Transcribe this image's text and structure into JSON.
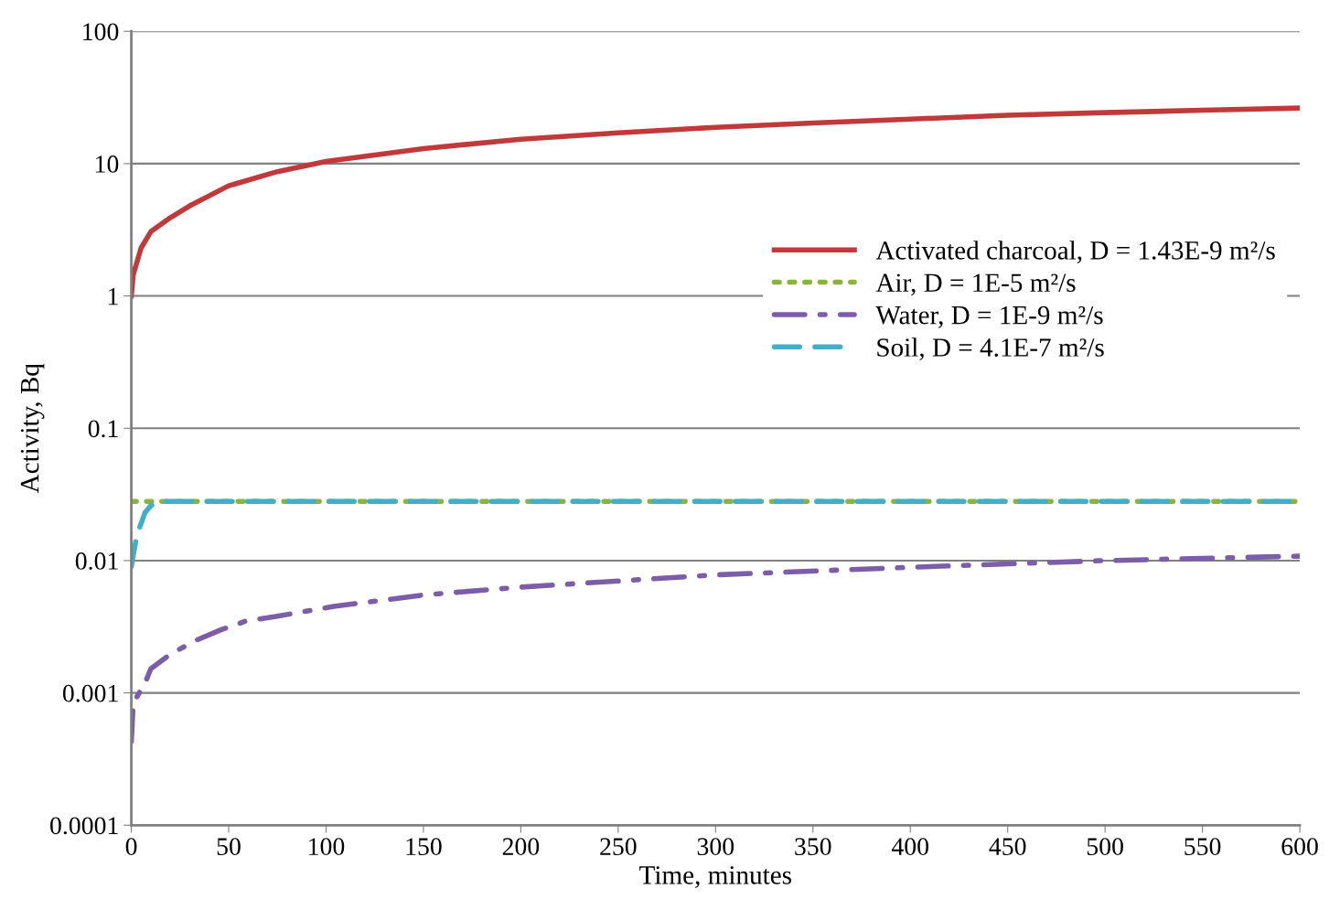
{
  "chart_data": {
    "type": "line",
    "xlabel": "Time, minutes",
    "ylabel": "Activity, Bq",
    "log": "y",
    "grid": "y",
    "legend": "center right",
    "xlim": [
      0,
      600
    ],
    "xticks": [
      0,
      50,
      100,
      150,
      200,
      250,
      300,
      350,
      400,
      450,
      500,
      550,
      600
    ],
    "ylim": [
      0.0001,
      100
    ],
    "yticks": [
      0.0001,
      0.001,
      0.01,
      0.1,
      1,
      10,
      100
    ],
    "series": [
      {
        "name": "Activated charcoal, D = 1.43E-9 m²/s",
        "color": "#c0393b",
        "line_style": "solid",
        "x": [
          0,
          1,
          5,
          10,
          20,
          30,
          50,
          75,
          100,
          150,
          200,
          250,
          300,
          350,
          400,
          450,
          500,
          550,
          600
        ],
        "values": [
          1.0,
          1.45,
          2.3,
          3.06,
          3.9,
          4.8,
          6.8,
          8.7,
          10.4,
          13,
          15.3,
          17.1,
          18.8,
          20.3,
          21.7,
          23.2,
          24.3,
          25.3,
          26.3
        ]
      },
      {
        "name": "Air, D = 1E-5 m²/s",
        "color": "#8db33f",
        "line_style": "dotted",
        "x": [
          0,
          600
        ],
        "values": [
          0.028,
          0.028
        ]
      },
      {
        "name": "Water, D = 1E-9 m²/s",
        "color": "#7b5ea7",
        "line_style": "dashdot",
        "x": [
          0,
          0.5,
          1,
          7,
          10,
          20,
          33,
          46,
          59,
          75,
          104,
          150,
          200,
          300,
          400,
          500,
          600
        ],
        "values": [
          0.00043,
          0.0006,
          0.00084,
          0.00118,
          0.00152,
          0.00196,
          0.00249,
          0.003,
          0.0035,
          0.0038,
          0.0045,
          0.0055,
          0.0063,
          0.0078,
          0.0089,
          0.01,
          0.0108
        ]
      },
      {
        "name": "Soil, D = 4.1E-7 m²/s",
        "color": "#3fb0c8",
        "line_style": "dashed",
        "x": [
          0,
          1,
          3,
          5,
          7,
          10,
          15,
          600
        ],
        "values": [
          0.009,
          0.011,
          0.016,
          0.019,
          0.023,
          0.026,
          0.028,
          0.028
        ]
      }
    ]
  }
}
